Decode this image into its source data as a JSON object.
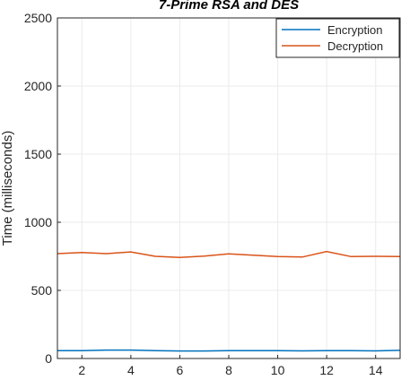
{
  "chart_data": {
    "type": "line",
    "title": "7-Prime RSA and DES",
    "xlabel": "",
    "ylabel": "Time (milliseconds)",
    "xlim": [
      1,
      15
    ],
    "ylim": [
      0,
      2500
    ],
    "xticks": [
      2,
      4,
      6,
      8,
      10,
      12,
      14
    ],
    "yticks": [
      0,
      500,
      1000,
      1500,
      2000,
      2500
    ],
    "grid": true,
    "legend_position": "top-right",
    "x": [
      1,
      2,
      3,
      4,
      5,
      6,
      7,
      8,
      9,
      10,
      11,
      12,
      13,
      14,
      15
    ],
    "series": [
      {
        "name": "Encryption",
        "color": "#0072BD",
        "values": [
          58,
          58,
          62,
          62,
          58,
          55,
          55,
          57,
          58,
          57,
          56,
          57,
          57,
          56,
          60
        ]
      },
      {
        "name": "Decryption",
        "color": "#D95319",
        "values": [
          770,
          778,
          770,
          782,
          750,
          742,
          752,
          768,
          758,
          748,
          745,
          785,
          748,
          750,
          748
        ]
      }
    ]
  }
}
